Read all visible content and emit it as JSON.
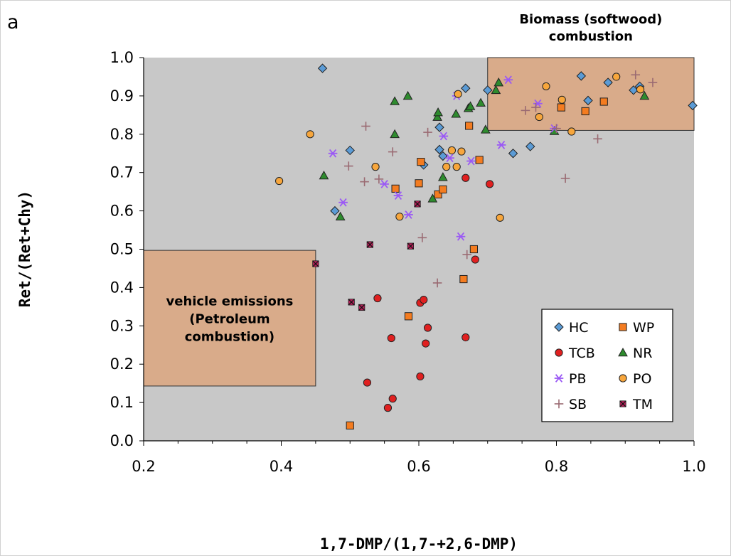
{
  "panel_label": "a",
  "chart_data": {
    "type": "scatter",
    "xlabel": "1,7-DMP/(1,7-+2,6-DMP)",
    "ylabel": "Ret/(Ret+Chy)",
    "xlim": [
      0.2,
      1.0
    ],
    "ylim": [
      0.0,
      1.0
    ],
    "xticks": [
      "0.2",
      "0.4",
      "0.6",
      "0.8",
      "1.0"
    ],
    "yticks": [
      "0.0",
      "0.1",
      "0.2",
      "0.3",
      "0.4",
      "0.5",
      "0.6",
      "0.7",
      "0.8",
      "0.9",
      "1.0"
    ],
    "grid": false,
    "background": "#c8c8c8",
    "legend_position": "bottom-right",
    "regions": [
      {
        "label_lines": [
          "vehicle emissions",
          "(Petroleum",
          "combustion)"
        ],
        "x": [
          0.2,
          0.45
        ],
        "y": [
          0.143,
          0.497
        ],
        "color": "#d9ab8a",
        "label_placement": "inside"
      },
      {
        "label_lines": [
          "Biomass (softwood)",
          "combustion"
        ],
        "x": [
          0.7,
          1.0
        ],
        "y": [
          0.81,
          1.0
        ],
        "color": "#d9ab8a",
        "label_placement": "above"
      }
    ],
    "series": [
      {
        "name": "HC",
        "marker": "diamond",
        "color": "#5b9bd5",
        "points": [
          [
            0.46,
            0.972
          ],
          [
            0.5,
            0.758
          ],
          [
            0.478,
            0.6
          ],
          [
            0.63,
            0.818
          ],
          [
            0.63,
            0.76
          ],
          [
            0.635,
            0.743
          ],
          [
            0.607,
            0.72
          ],
          [
            0.668,
            0.92
          ],
          [
            0.737,
            0.75
          ],
          [
            0.762,
            0.768
          ],
          [
            0.7,
            0.915
          ],
          [
            0.836,
            0.952
          ],
          [
            0.846,
            0.888
          ],
          [
            0.875,
            0.935
          ],
          [
            0.912,
            0.915
          ],
          [
            0.921,
            0.925
          ],
          [
            0.998,
            0.875
          ]
        ]
      },
      {
        "name": "WP",
        "marker": "square",
        "color": "#f47c20",
        "points": [
          [
            0.5,
            0.04
          ],
          [
            0.585,
            0.325
          ],
          [
            0.566,
            0.658
          ],
          [
            0.6,
            0.672
          ],
          [
            0.603,
            0.728
          ],
          [
            0.628,
            0.643
          ],
          [
            0.635,
            0.656
          ],
          [
            0.673,
            0.822
          ],
          [
            0.688,
            0.733
          ],
          [
            0.68,
            0.5
          ],
          [
            0.665,
            0.422
          ],
          [
            0.807,
            0.87
          ],
          [
            0.842,
            0.86
          ],
          [
            0.869,
            0.885
          ]
        ]
      },
      {
        "name": "TCB",
        "marker": "circle",
        "color": "#e02020",
        "points": [
          [
            0.525,
            0.152
          ],
          [
            0.555,
            0.086
          ],
          [
            0.562,
            0.11
          ],
          [
            0.54,
            0.372
          ],
          [
            0.56,
            0.268
          ],
          [
            0.602,
            0.36
          ],
          [
            0.607,
            0.368
          ],
          [
            0.61,
            0.254
          ],
          [
            0.613,
            0.295
          ],
          [
            0.602,
            0.168
          ],
          [
            0.668,
            0.27
          ],
          [
            0.668,
            0.686
          ],
          [
            0.703,
            0.67
          ],
          [
            0.682,
            0.473
          ]
        ]
      },
      {
        "name": "NR",
        "marker": "triangle",
        "color": "#2e8b2e",
        "points": [
          [
            0.462,
            0.692
          ],
          [
            0.486,
            0.585
          ],
          [
            0.565,
            0.8
          ],
          [
            0.565,
            0.886
          ],
          [
            0.584,
            0.9
          ],
          [
            0.62,
            0.632
          ],
          [
            0.627,
            0.845
          ],
          [
            0.628,
            0.857
          ],
          [
            0.635,
            0.688
          ],
          [
            0.654,
            0.853
          ],
          [
            0.672,
            0.868
          ],
          [
            0.675,
            0.873
          ],
          [
            0.69,
            0.882
          ],
          [
            0.697,
            0.812
          ],
          [
            0.712,
            0.915
          ],
          [
            0.716,
            0.935
          ],
          [
            0.797,
            0.808
          ],
          [
            0.928,
            0.9
          ]
        ]
      },
      {
        "name": "PB",
        "marker": "asterisk",
        "color": "#9b59f5",
        "points": [
          [
            0.475,
            0.75
          ],
          [
            0.49,
            0.622
          ],
          [
            0.55,
            0.67
          ],
          [
            0.57,
            0.64
          ],
          [
            0.585,
            0.59
          ],
          [
            0.636,
            0.795
          ],
          [
            0.645,
            0.738
          ],
          [
            0.655,
            0.9
          ],
          [
            0.661,
            0.533
          ],
          [
            0.676,
            0.73
          ],
          [
            0.72,
            0.772
          ],
          [
            0.73,
            0.942
          ],
          [
            0.773,
            0.88
          ],
          [
            0.797,
            0.815
          ]
        ]
      },
      {
        "name": "PO",
        "marker": "circle",
        "color": "#f7a63c",
        "points": [
          [
            0.397,
            0.678
          ],
          [
            0.442,
            0.8
          ],
          [
            0.537,
            0.715
          ],
          [
            0.572,
            0.585
          ],
          [
            0.64,
            0.715
          ],
          [
            0.648,
            0.758
          ],
          [
            0.655,
            0.715
          ],
          [
            0.662,
            0.755
          ],
          [
            0.657,
            0.905
          ],
          [
            0.718,
            0.582
          ],
          [
            0.775,
            0.845
          ],
          [
            0.785,
            0.925
          ],
          [
            0.808,
            0.89
          ],
          [
            0.822,
            0.807
          ],
          [
            0.887,
            0.95
          ],
          [
            0.922,
            0.917
          ]
        ]
      },
      {
        "name": "SB",
        "marker": "plus",
        "color": "#9a6a72",
        "points": [
          [
            0.498,
            0.717
          ],
          [
            0.521,
            0.676
          ],
          [
            0.523,
            0.821
          ],
          [
            0.542,
            0.683
          ],
          [
            0.562,
            0.754
          ],
          [
            0.605,
            0.53
          ],
          [
            0.613,
            0.805
          ],
          [
            0.627,
            0.412
          ],
          [
            0.67,
            0.486
          ],
          [
            0.755,
            0.862
          ],
          [
            0.77,
            0.87
          ],
          [
            0.8,
            0.815
          ],
          [
            0.813,
            0.685
          ],
          [
            0.86,
            0.788
          ],
          [
            0.915,
            0.955
          ],
          [
            0.94,
            0.935
          ]
        ]
      },
      {
        "name": "TM",
        "marker": "xsquare",
        "color": "#b8205a",
        "points": [
          [
            0.45,
            0.462
          ],
          [
            0.502,
            0.362
          ],
          [
            0.517,
            0.348
          ],
          [
            0.529,
            0.512
          ],
          [
            0.588,
            0.508
          ],
          [
            0.598,
            0.618
          ]
        ]
      }
    ]
  }
}
